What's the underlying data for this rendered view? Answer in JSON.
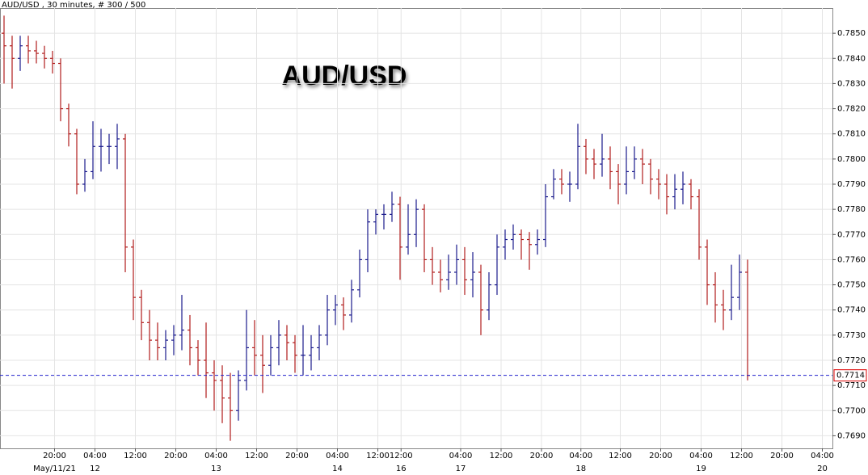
{
  "chart_data": {
    "type": "ohlc",
    "header": "AUD/USD , 30 minutes, # 300 / 500",
    "title": "AUD/USD",
    "up_color": "#1a1a8c",
    "down_color": "#b01c1c",
    "grid": true,
    "ylim": [
      0.7685,
      0.786
    ],
    "yticks": [
      {
        "value": 0.769,
        "label": "0.7690"
      },
      {
        "value": 0.77,
        "label": "0.7700"
      },
      {
        "value": 0.771,
        "label": "0.7710"
      },
      {
        "value": 0.772,
        "label": "0.7720"
      },
      {
        "value": 0.773,
        "label": "0.7730"
      },
      {
        "value": 0.774,
        "label": "0.7740"
      },
      {
        "value": 0.775,
        "label": "0.7750"
      },
      {
        "value": 0.776,
        "label": "0.7760"
      },
      {
        "value": 0.777,
        "label": "0.7770"
      },
      {
        "value": 0.778,
        "label": "0.7780"
      },
      {
        "value": 0.779,
        "label": "0.7790"
      },
      {
        "value": 0.78,
        "label": "0.7800"
      },
      {
        "value": 0.781,
        "label": "0.7810"
      },
      {
        "value": 0.782,
        "label": "0.7820"
      },
      {
        "value": 0.783,
        "label": "0.7830"
      },
      {
        "value": 0.784,
        "label": "0.7840"
      },
      {
        "value": 0.785,
        "label": "0.7850"
      }
    ],
    "xlim": [
      -0.8,
      164
    ],
    "xticks": [
      {
        "value": 10,
        "label": "20:00"
      },
      {
        "value": 18,
        "label": "04:00"
      },
      {
        "value": 26,
        "label": "12:00"
      },
      {
        "value": 34,
        "label": "20:00"
      },
      {
        "value": 42,
        "label": "04:00"
      },
      {
        "value": 50,
        "label": "12:00"
      },
      {
        "value": 58,
        "label": "20:00"
      },
      {
        "value": 66,
        "label": "04:00"
      },
      {
        "value": 74,
        "label": "12:00"
      },
      {
        "value": 78.6,
        "label": "12:00"
      },
      {
        "value": 90.4,
        "label": "04:00"
      },
      {
        "value": 98.4,
        "label": "12:00"
      },
      {
        "value": 106.4,
        "label": "20:00"
      },
      {
        "value": 114.2,
        "label": "04:00"
      },
      {
        "value": 122,
        "label": "12:00"
      },
      {
        "value": 130,
        "label": "20:00"
      },
      {
        "value": 138,
        "label": "04:00"
      },
      {
        "value": 146,
        "label": "12:00"
      },
      {
        "value": 154,
        "label": "20:00"
      },
      {
        "value": 162,
        "label": "04:00"
      }
    ],
    "date_labels": [
      {
        "value": 10,
        "label": "May/11/21"
      },
      {
        "value": 18,
        "label": "12"
      },
      {
        "value": 42,
        "label": "13"
      },
      {
        "value": 66,
        "label": "14"
      },
      {
        "value": 78.6,
        "label": "16"
      },
      {
        "value": 90.4,
        "label": "17"
      },
      {
        "value": 114.2,
        "label": "18"
      },
      {
        "value": 138,
        "label": "19"
      },
      {
        "value": 162,
        "label": "20"
      }
    ],
    "current_price": {
      "value": 0.7714,
      "label": "0.7714"
    },
    "x": [
      0,
      1.6,
      3.2,
      4.8,
      6.4,
      8,
      9.6,
      11.2,
      12.8,
      14.4,
      16,
      17.6,
      19.2,
      20.8,
      22.4,
      24,
      25.6,
      27.2,
      28.8,
      30.4,
      32,
      33.6,
      35.2,
      36.8,
      38.4,
      40,
      41.6,
      43.2,
      44.8,
      46.4,
      48,
      49.6,
      51.2,
      52.8,
      54.4,
      56,
      57.6,
      59.2,
      60.8,
      62.4,
      64,
      65.6,
      67.2,
      68.8,
      70.4,
      72,
      73.6,
      75.2,
      76.8,
      78.4,
      80,
      81.6,
      83.2,
      84.8,
      86.4,
      88,
      89.6,
      91.2,
      92.8,
      94.4,
      96,
      97.6,
      99.2,
      100.8,
      102.4,
      104,
      105.6,
      107.2,
      108.8,
      110.4,
      112,
      113.6,
      115.2,
      116.8,
      118.4,
      120,
      121.6,
      123.2,
      124.8,
      126.4,
      128,
      129.6,
      131.2,
      132.8,
      134.4,
      136,
      137.6,
      139.2,
      140.8,
      142.4,
      144,
      145.6,
      147.2
    ],
    "ohlc": [
      [
        0.785,
        0.7857,
        0.783,
        0.7845
      ],
      [
        0.7845,
        0.7849,
        0.7828,
        0.784
      ],
      [
        0.784,
        0.7849,
        0.7835,
        0.7845
      ],
      [
        0.7845,
        0.7849,
        0.7838,
        0.7843
      ],
      [
        0.7843,
        0.7847,
        0.7838,
        0.7842
      ],
      [
        0.7842,
        0.7845,
        0.7836,
        0.784
      ],
      [
        0.784,
        0.7843,
        0.7834,
        0.7838
      ],
      [
        0.7838,
        0.784,
        0.7815,
        0.782
      ],
      [
        0.782,
        0.7822,
        0.7805,
        0.781
      ],
      [
        0.781,
        0.7812,
        0.7786,
        0.779
      ],
      [
        0.779,
        0.78,
        0.7787,
        0.7795
      ],
      [
        0.7795,
        0.7815,
        0.7792,
        0.7805
      ],
      [
        0.7805,
        0.7812,
        0.7795,
        0.7805
      ],
      [
        0.7805,
        0.781,
        0.7798,
        0.7805
      ],
      [
        0.7805,
        0.7814,
        0.7796,
        0.7808
      ],
      [
        0.7808,
        0.781,
        0.7755,
        0.7765
      ],
      [
        0.7765,
        0.7768,
        0.7736,
        0.7745
      ],
      [
        0.7745,
        0.7748,
        0.7728,
        0.7735
      ],
      [
        0.7735,
        0.774,
        0.772,
        0.7728
      ],
      [
        0.7728,
        0.7735,
        0.772,
        0.7725
      ],
      [
        0.7725,
        0.7732,
        0.772,
        0.7728
      ],
      [
        0.7728,
        0.7734,
        0.7722,
        0.773
      ],
      [
        0.773,
        0.7746,
        0.7724,
        0.7732
      ],
      [
        0.7732,
        0.7738,
        0.7718,
        0.7725
      ],
      [
        0.7725,
        0.7728,
        0.7714,
        0.772
      ],
      [
        0.772,
        0.7735,
        0.7705,
        0.7715
      ],
      [
        0.7715,
        0.772,
        0.77,
        0.7712
      ],
      [
        0.7712,
        0.7718,
        0.7695,
        0.7705
      ],
      [
        0.7705,
        0.7715,
        0.7688,
        0.77
      ],
      [
        0.77,
        0.7716,
        0.7696,
        0.7712
      ],
      [
        0.7712,
        0.774,
        0.7708,
        0.7725
      ],
      [
        0.7725,
        0.7736,
        0.7714,
        0.7722
      ],
      [
        0.7722,
        0.773,
        0.7707,
        0.7718
      ],
      [
        0.7718,
        0.773,
        0.7714,
        0.7725
      ],
      [
        0.7725,
        0.7736,
        0.7718,
        0.773
      ],
      [
        0.773,
        0.7734,
        0.772,
        0.7727
      ],
      [
        0.7727,
        0.773,
        0.7715,
        0.7722
      ],
      [
        0.7722,
        0.7734,
        0.7714,
        0.7722
      ],
      [
        0.7722,
        0.773,
        0.7716,
        0.7725
      ],
      [
        0.7725,
        0.7734,
        0.772,
        0.773
      ],
      [
        0.773,
        0.7746,
        0.7726,
        0.774
      ],
      [
        0.774,
        0.7746,
        0.7734,
        0.7742
      ],
      [
        0.7742,
        0.7745,
        0.7732,
        0.7738
      ],
      [
        0.7738,
        0.7752,
        0.7735,
        0.7748
      ],
      [
        0.7748,
        0.7764,
        0.7745,
        0.776
      ],
      [
        0.776,
        0.778,
        0.7755,
        0.7775
      ],
      [
        0.7775,
        0.778,
        0.777,
        0.7778
      ],
      [
        0.7778,
        0.7782,
        0.7772,
        0.7778
      ],
      [
        0.7778,
        0.7787,
        0.7775,
        0.7782
      ],
      [
        0.7782,
        0.7785,
        0.7752,
        0.7765
      ],
      [
        0.7765,
        0.7782,
        0.7762,
        0.777
      ],
      [
        0.777,
        0.7784,
        0.7765,
        0.778
      ],
      [
        0.778,
        0.7782,
        0.7755,
        0.776
      ],
      [
        0.776,
        0.7765,
        0.775,
        0.7755
      ],
      [
        0.7755,
        0.776,
        0.7747,
        0.7752
      ],
      [
        0.7752,
        0.7762,
        0.7748,
        0.7755
      ],
      [
        0.7755,
        0.7766,
        0.775,
        0.776
      ],
      [
        0.776,
        0.7765,
        0.7746,
        0.7752
      ],
      [
        0.7752,
        0.7763,
        0.7745,
        0.7755
      ],
      [
        0.7755,
        0.7758,
        0.773,
        0.774
      ],
      [
        0.774,
        0.7755,
        0.7736,
        0.775
      ],
      [
        0.775,
        0.777,
        0.7746,
        0.7765
      ],
      [
        0.7765,
        0.7772,
        0.776,
        0.7768
      ],
      [
        0.7768,
        0.7774,
        0.7764,
        0.777
      ],
      [
        0.777,
        0.7772,
        0.776,
        0.7768
      ],
      [
        0.7768,
        0.7771,
        0.7756,
        0.7766
      ],
      [
        0.7766,
        0.7772,
        0.7762,
        0.7768
      ],
      [
        0.7768,
        0.779,
        0.7765,
        0.7785
      ],
      [
        0.7785,
        0.7796,
        0.7784,
        0.7792
      ],
      [
        0.7792,
        0.7796,
        0.7786,
        0.779
      ],
      [
        0.779,
        0.7795,
        0.7783,
        0.779
      ],
      [
        0.779,
        0.7814,
        0.7788,
        0.7805
      ],
      [
        0.7805,
        0.7808,
        0.7794,
        0.78
      ],
      [
        0.78,
        0.7804,
        0.7792,
        0.7798
      ],
      [
        0.7798,
        0.781,
        0.7793,
        0.78
      ],
      [
        0.78,
        0.7805,
        0.7788,
        0.7795
      ],
      [
        0.7795,
        0.7798,
        0.7782,
        0.779
      ],
      [
        0.779,
        0.7805,
        0.7786,
        0.7795
      ],
      [
        0.7795,
        0.7805,
        0.7792,
        0.78
      ],
      [
        0.78,
        0.7804,
        0.779,
        0.7798
      ],
      [
        0.7798,
        0.78,
        0.7786,
        0.7792
      ],
      [
        0.7792,
        0.7796,
        0.7784,
        0.779
      ],
      [
        0.779,
        0.7794,
        0.7778,
        0.7785
      ],
      [
        0.7785,
        0.7794,
        0.778,
        0.7788
      ],
      [
        0.7788,
        0.7795,
        0.7782,
        0.779
      ],
      [
        0.779,
        0.7792,
        0.778,
        0.7785
      ],
      [
        0.7785,
        0.7788,
        0.776,
        0.7765
      ],
      [
        0.7765,
        0.7768,
        0.7742,
        0.775
      ],
      [
        0.775,
        0.7755,
        0.7735,
        0.7742
      ],
      [
        0.7742,
        0.7748,
        0.7732,
        0.774
      ],
      [
        0.774,
        0.7758,
        0.7736,
        0.7745
      ],
      [
        0.7745,
        0.7762,
        0.774,
        0.7755
      ],
      [
        0.7755,
        0.776,
        0.7712,
        0.7714
      ]
    ]
  }
}
